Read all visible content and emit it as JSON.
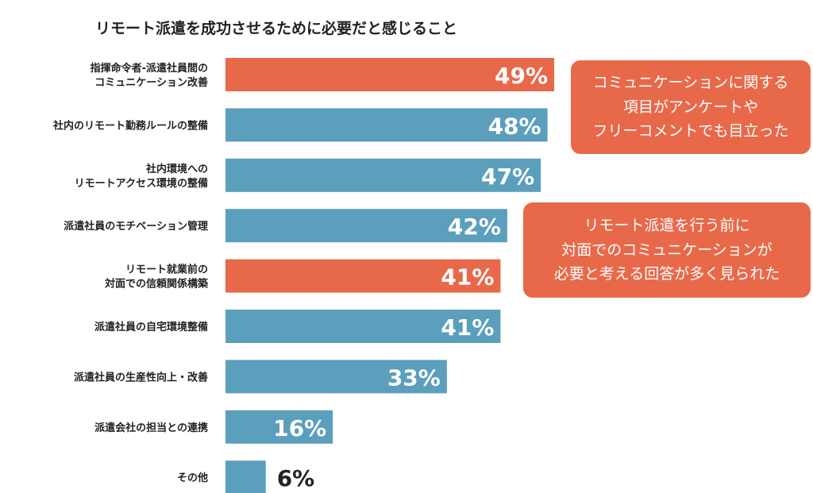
{
  "colors": {
    "highlight": "#E8694A",
    "normal": "#5B9FBC",
    "text": "#222222",
    "callout": "#E8694A"
  },
  "chart_data": {
    "type": "bar",
    "orientation": "horizontal",
    "title": "リモート派遣を成功させるために必要だと感じること",
    "categories": [
      "指揮命令者-派遣社員間の\nコミュニケーション改善",
      "社内のリモート勤務ルールの整備",
      "社内環境への\nリモートアクセス環境の整備",
      "派遣社員のモチベーション管理",
      "リモート就業前の\n対面での信頼関係構築",
      "派遣社員の自宅環境整備",
      "派遣社員の生産性向上・改善",
      "派遣会社の担当との連携",
      "その他"
    ],
    "values": [
      49,
      48,
      47,
      42,
      41,
      41,
      33,
      16,
      6
    ],
    "value_labels": [
      "49%",
      "48%",
      "47%",
      "42%",
      "41%",
      "41%",
      "33%",
      "16%",
      "6%"
    ],
    "highlighted": [
      true,
      false,
      false,
      false,
      true,
      false,
      false,
      false,
      false
    ],
    "xlim": [
      0,
      100
    ]
  },
  "callouts": [
    {
      "text": "コミュニケーションに関する\n項目がアンケートや\nフリーコメントでも目立った"
    },
    {
      "text": "リモート派遣を行う前に\n対面でのコミュニケーションが\n必要と考える回答が多く見られた"
    }
  ]
}
